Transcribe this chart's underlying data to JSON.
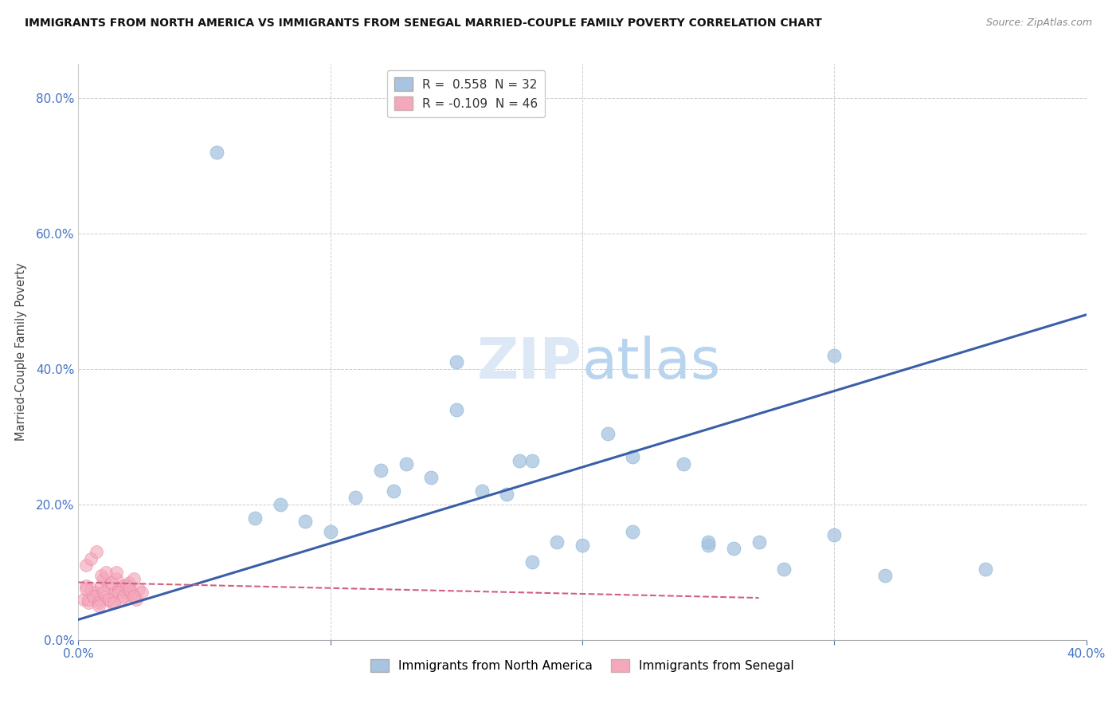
{
  "title": "IMMIGRANTS FROM NORTH AMERICA VS IMMIGRANTS FROM SENEGAL MARRIED-COUPLE FAMILY POVERTY CORRELATION CHART",
  "source": "Source: ZipAtlas.com",
  "ylabel": "Married-Couple Family Poverty",
  "legend_label_blue": "Immigrants from North America",
  "legend_label_pink": "Immigrants from Senegal",
  "R_blue": 0.558,
  "N_blue": 32,
  "R_pink": -0.109,
  "N_pink": 46,
  "xlim": [
    0.0,
    0.4
  ],
  "ylim": [
    0.0,
    0.85
  ],
  "xticks_show": [
    0.0,
    0.4
  ],
  "yticks": [
    0.0,
    0.2,
    0.4,
    0.6,
    0.8
  ],
  "yticks_grid": [
    0.0,
    0.2,
    0.4,
    0.6,
    0.8
  ],
  "blue_color": "#a8c4e0",
  "blue_edge_color": "#7aafd4",
  "pink_color": "#f4a8bc",
  "pink_edge_color": "#e87898",
  "trend_blue_color": "#3a5fa8",
  "trend_pink_color": "#d06080",
  "watermark_color": "#dce8f5",
  "blue_scatter_x": [
    0.055,
    0.07,
    0.08,
    0.09,
    0.1,
    0.11,
    0.12,
    0.125,
    0.13,
    0.14,
    0.15,
    0.16,
    0.17,
    0.175,
    0.18,
    0.19,
    0.2,
    0.21,
    0.22,
    0.24,
    0.25,
    0.26,
    0.27,
    0.28,
    0.3,
    0.32,
    0.15,
    0.18,
    0.22,
    0.25,
    0.3,
    0.36
  ],
  "blue_scatter_y": [
    0.72,
    0.18,
    0.2,
    0.175,
    0.16,
    0.21,
    0.25,
    0.22,
    0.26,
    0.24,
    0.41,
    0.22,
    0.215,
    0.265,
    0.265,
    0.145,
    0.14,
    0.305,
    0.16,
    0.26,
    0.14,
    0.135,
    0.145,
    0.105,
    0.42,
    0.095,
    0.34,
    0.115,
    0.27,
    0.145,
    0.155,
    0.105
  ],
  "pink_scatter_x": [
    0.002,
    0.003,
    0.004,
    0.005,
    0.006,
    0.007,
    0.008,
    0.009,
    0.01,
    0.011,
    0.012,
    0.013,
    0.014,
    0.015,
    0.016,
    0.017,
    0.018,
    0.019,
    0.02,
    0.021,
    0.022,
    0.023,
    0.024,
    0.025,
    0.003,
    0.005,
    0.007,
    0.009,
    0.011,
    0.013,
    0.015,
    0.017,
    0.019,
    0.021,
    0.004,
    0.006,
    0.008,
    0.01,
    0.012,
    0.014,
    0.016,
    0.018,
    0.02,
    0.022,
    0.003,
    0.008
  ],
  "pink_scatter_y": [
    0.06,
    0.08,
    0.055,
    0.075,
    0.065,
    0.07,
    0.06,
    0.08,
    0.09,
    0.065,
    0.08,
    0.055,
    0.07,
    0.09,
    0.075,
    0.06,
    0.08,
    0.07,
    0.085,
    0.065,
    0.09,
    0.06,
    0.075,
    0.07,
    0.11,
    0.12,
    0.13,
    0.095,
    0.1,
    0.085,
    0.1,
    0.075,
    0.08,
    0.07,
    0.06,
    0.065,
    0.055,
    0.07,
    0.06,
    0.055,
    0.07,
    0.065,
    0.075,
    0.065,
    0.075,
    0.05
  ]
}
